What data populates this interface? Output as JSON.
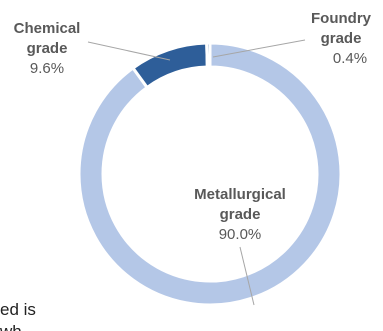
{
  "chart_data": {
    "type": "pie",
    "variant": "donut",
    "categories": [
      "Metallurgical grade",
      "Chemical grade",
      "Foundry grade"
    ],
    "values": [
      90.0,
      9.6,
      0.4
    ],
    "value_labels": [
      "90.0%",
      "9.6%",
      "0.4%"
    ],
    "category_lines": [
      [
        "Metallurgical",
        "grade"
      ],
      [
        "Chemical",
        "grade"
      ],
      [
        "Foundry",
        "grade"
      ]
    ],
    "colors": [
      "#b4c7e7",
      "#2e5e99",
      "#2e5e99"
    ],
    "legend": "none",
    "grid": false
  },
  "page_text": {
    "cropped_line_1": "ed is",
    "cropped_line_2": "wh"
  }
}
